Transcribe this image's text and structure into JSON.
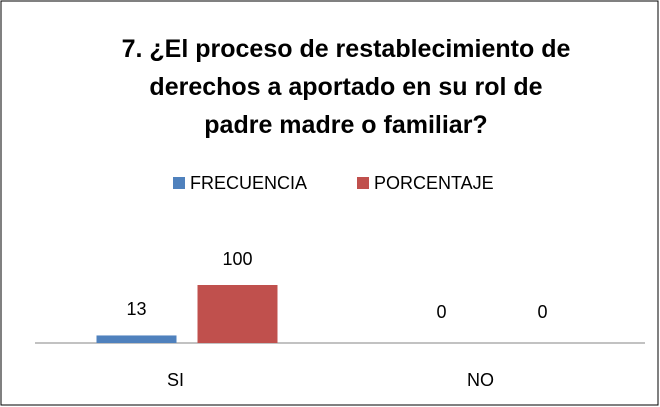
{
  "chart_data": {
    "type": "bar",
    "title": "7. ¿El proceso de restablecimiento de\nderechos a aportado en su rol de\npadre madre o familiar?",
    "categories": [
      "SI",
      "NO"
    ],
    "series": [
      {
        "name": "FRECUENCIA",
        "color": "#4f81bd",
        "values": [
          13,
          0
        ]
      },
      {
        "name": "PORCENTAJE",
        "color": "#c0504d",
        "values": [
          100,
          0
        ]
      }
    ],
    "legend": "top"
  }
}
